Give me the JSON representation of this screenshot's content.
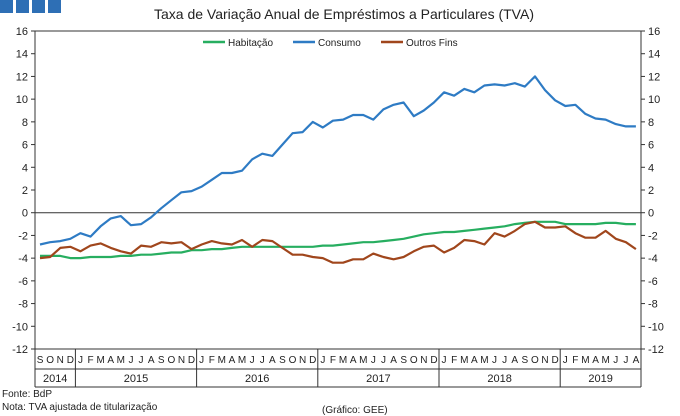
{
  "chart_data": {
    "type": "line",
    "title": "Taxa de Variação Anual de Empréstimos a Particulares (TVA)",
    "ylim": [
      -12,
      16
    ],
    "yticks": [
      -12,
      -10,
      -8,
      -6,
      -4,
      -2,
      0,
      2,
      4,
      6,
      8,
      10,
      12,
      14,
      16
    ],
    "secondary_y_axis": true,
    "legend_position": "top",
    "month_labels": [
      "S",
      "O",
      "N",
      "D",
      "J",
      "F",
      "M",
      "A",
      "M",
      "J",
      "J",
      "A",
      "S",
      "O",
      "N",
      "D",
      "J",
      "F",
      "M",
      "A",
      "M",
      "J",
      "J",
      "A",
      "S",
      "O",
      "N",
      "D",
      "J",
      "F",
      "M",
      "A",
      "M",
      "J",
      "J",
      "A",
      "S",
      "O",
      "N",
      "D",
      "J",
      "F",
      "M",
      "A",
      "M",
      "J",
      "J",
      "A",
      "S",
      "O",
      "N",
      "D",
      "J",
      "F",
      "M",
      "A",
      "M",
      "J",
      "J",
      "A"
    ],
    "years": [
      {
        "label": "2014",
        "start": 0,
        "end": 3
      },
      {
        "label": "2015",
        "start": 4,
        "end": 15
      },
      {
        "label": "2016",
        "start": 16,
        "end": 27
      },
      {
        "label": "2017",
        "start": 28,
        "end": 39
      },
      {
        "label": "2018",
        "start": 40,
        "end": 51
      },
      {
        "label": "2019",
        "start": 52,
        "end": 59
      }
    ],
    "x": [
      "2014-09",
      "2014-10",
      "2014-11",
      "2014-12",
      "2015-01",
      "2015-02",
      "2015-03",
      "2015-04",
      "2015-05",
      "2015-06",
      "2015-07",
      "2015-08",
      "2015-09",
      "2015-10",
      "2015-11",
      "2015-12",
      "2016-01",
      "2016-02",
      "2016-03",
      "2016-04",
      "2016-05",
      "2016-06",
      "2016-07",
      "2016-08",
      "2016-09",
      "2016-10",
      "2016-11",
      "2016-12",
      "2017-01",
      "2017-02",
      "2017-03",
      "2017-04",
      "2017-05",
      "2017-06",
      "2017-07",
      "2017-08",
      "2017-09",
      "2017-10",
      "2017-11",
      "2017-12",
      "2018-01",
      "2018-02",
      "2018-03",
      "2018-04",
      "2018-05",
      "2018-06",
      "2018-07",
      "2018-08",
      "2018-09",
      "2018-10",
      "2018-11",
      "2018-12",
      "2019-01",
      "2019-02",
      "2019-03",
      "2019-04",
      "2019-05",
      "2019-06",
      "2019-07",
      "2019-08"
    ],
    "series": [
      {
        "name": "Habitação",
        "color": "#27ae60",
        "values": [
          -3.8,
          -3.8,
          -3.8,
          -4.0,
          -4.0,
          -3.9,
          -3.9,
          -3.9,
          -3.8,
          -3.8,
          -3.7,
          -3.7,
          -3.6,
          -3.5,
          -3.5,
          -3.3,
          -3.3,
          -3.2,
          -3.2,
          -3.1,
          -3.0,
          -3.0,
          -3.0,
          -3.0,
          -3.0,
          -3.0,
          -3.0,
          -3.0,
          -2.9,
          -2.9,
          -2.8,
          -2.7,
          -2.6,
          -2.6,
          -2.5,
          -2.4,
          -2.3,
          -2.1,
          -1.9,
          -1.8,
          -1.7,
          -1.7,
          -1.6,
          -1.5,
          -1.4,
          -1.3,
          -1.2,
          -1.0,
          -0.9,
          -0.8,
          -0.8,
          -0.8,
          -1.0,
          -1.0,
          -1.0,
          -1.0,
          -0.9,
          -0.9,
          -1.0,
          -1.0
        ]
      },
      {
        "name": "Consumo",
        "color": "#2e7bc4",
        "values": [
          -2.8,
          -2.6,
          -2.5,
          -2.3,
          -1.8,
          -2.1,
          -1.2,
          -0.5,
          -0.3,
          -1.1,
          -1.0,
          -0.4,
          0.4,
          1.1,
          1.8,
          1.9,
          2.3,
          2.9,
          3.5,
          3.5,
          3.7,
          4.7,
          5.2,
          5.0,
          6.0,
          7.0,
          7.1,
          8.0,
          7.5,
          8.1,
          8.2,
          8.6,
          8.6,
          8.2,
          9.1,
          9.5,
          9.7,
          8.5,
          9.0,
          9.7,
          10.6,
          10.3,
          10.9,
          10.6,
          11.2,
          11.3,
          11.2,
          11.4,
          11.1,
          12.0,
          10.8,
          9.9,
          9.4,
          9.5,
          8.7,
          8.3,
          8.2,
          7.8,
          7.6,
          7.6
        ]
      },
      {
        "name": "Outros Fins",
        "color": "#a0461c",
        "values": [
          -4.0,
          -3.9,
          -3.1,
          -3.0,
          -3.4,
          -2.9,
          -2.7,
          -3.1,
          -3.4,
          -3.6,
          -2.9,
          -3.0,
          -2.6,
          -2.7,
          -2.6,
          -3.2,
          -2.8,
          -2.5,
          -2.7,
          -2.8,
          -2.4,
          -3.0,
          -2.4,
          -2.5,
          -3.1,
          -3.7,
          -3.7,
          -3.9,
          -4.0,
          -4.4,
          -4.4,
          -4.1,
          -4.1,
          -3.6,
          -3.9,
          -4.1,
          -3.9,
          -3.4,
          -3.0,
          -2.9,
          -3.5,
          -3.1,
          -2.4,
          -2.5,
          -2.8,
          -1.8,
          -2.1,
          -1.6,
          -1.0,
          -0.8,
          -1.3,
          -1.3,
          -1.2,
          -1.8,
          -2.2,
          -2.2,
          -1.6,
          -2.3,
          -2.6,
          -3.2
        ]
      }
    ],
    "grid": false
  },
  "footer": {
    "source": "Fonte: BdP",
    "note": "Nota: TVA ajustada de titularização",
    "credit": "(Gráfico: GEE)"
  }
}
